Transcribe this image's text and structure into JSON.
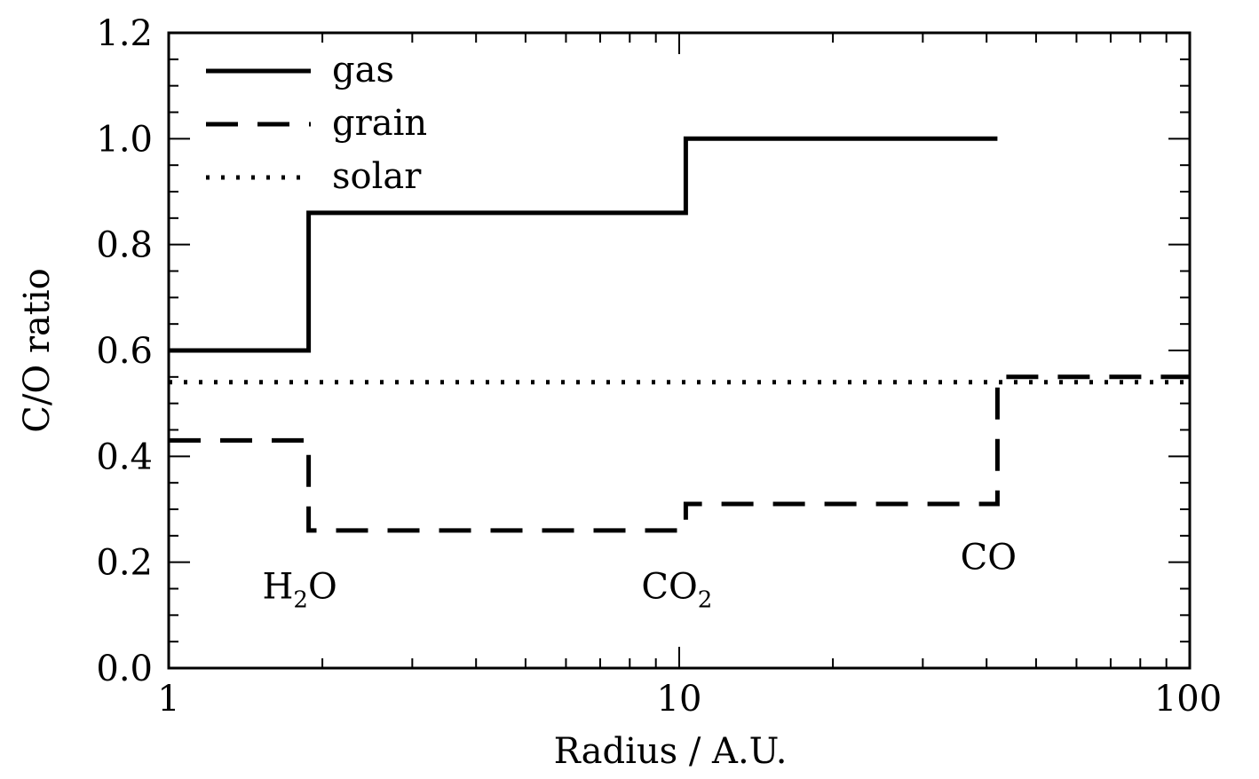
{
  "chart_data": {
    "type": "line",
    "title": "",
    "xlabel": "Radius / A.U.",
    "ylabel": "C/O ratio",
    "xscale": "log",
    "xlim": [
      1,
      100
    ],
    "ylim": [
      0.0,
      1.2
    ],
    "x_ticks": [
      1,
      10,
      100
    ],
    "x_tick_labels": [
      "1",
      "10",
      "100"
    ],
    "y_ticks": [
      0.0,
      0.2,
      0.4,
      0.6,
      0.8,
      1.0,
      1.2
    ],
    "y_tick_labels": [
      "0.0",
      "0.2",
      "0.4",
      "0.6",
      "0.8",
      "1.0",
      "1.2"
    ],
    "grid": false,
    "legend": "top-left",
    "series": [
      {
        "name": "gas",
        "style": "solid",
        "x": [
          1,
          1.88,
          1.88,
          10.3,
          10.3,
          42
        ],
        "y": [
          0.6,
          0.6,
          0.86,
          0.86,
          1.0,
          1.0
        ]
      },
      {
        "name": "grain",
        "style": "dashed",
        "x": [
          1,
          1.88,
          1.88,
          10.3,
          10.3,
          42,
          42,
          100
        ],
        "y": [
          0.43,
          0.43,
          0.26,
          0.26,
          0.31,
          0.31,
          0.55,
          0.55
        ]
      },
      {
        "name": "solar",
        "style": "dotted",
        "x": [
          1,
          100
        ],
        "y": [
          0.54,
          0.54
        ]
      }
    ],
    "annotations": [
      {
        "base": "H",
        "sub": "2",
        "tail": "O",
        "x": 1.88,
        "y": 0.155
      },
      {
        "base": "CO",
        "sub": "2",
        "tail": "",
        "x": 10.3,
        "y": 0.155
      },
      {
        "base": "CO",
        "sub": "",
        "tail": "",
        "x": 42,
        "y": 0.21
      }
    ]
  }
}
